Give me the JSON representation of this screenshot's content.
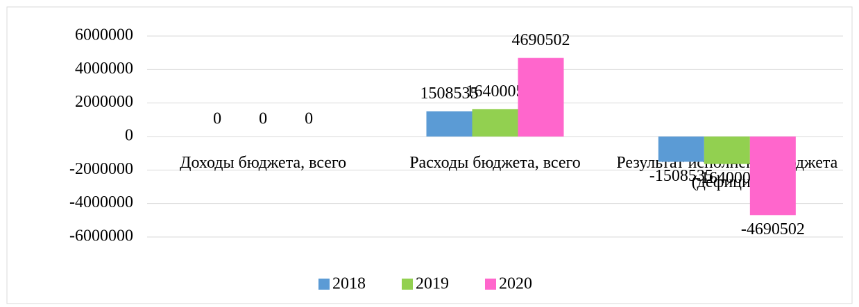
{
  "chart_data": {
    "type": "bar",
    "categories": [
      "Доходы бюджета, всего",
      "Расходы бюджета, всего",
      "Результат исполнения бюджета (дефицит/"
    ],
    "series": [
      {
        "name": "2018",
        "color": "#5b9bd5",
        "values": [
          0,
          1508535,
          -1508535
        ]
      },
      {
        "name": "2019",
        "color": "#92d050",
        "values": [
          0,
          1640005,
          -1640005
        ]
      },
      {
        "name": "2020",
        "color": "#ff66cc",
        "values": [
          0,
          4690502,
          -4690502
        ]
      }
    ],
    "ylim": [
      -6000000,
      6000000
    ],
    "yticks": [
      -6000000,
      -4000000,
      -2000000,
      0,
      2000000,
      4000000,
      6000000
    ],
    "grid": true,
    "legend": "bottom"
  }
}
